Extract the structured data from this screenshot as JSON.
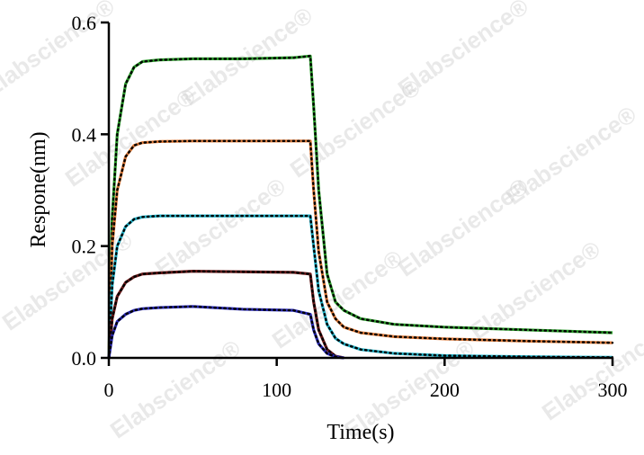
{
  "watermark": "Elabscience®",
  "chart_data": {
    "type": "line",
    "title": "",
    "xlabel": "Time(s)",
    "ylabel": "Respone(nm)",
    "xlim": [
      0,
      300
    ],
    "ylim": [
      0,
      0.6
    ],
    "x_ticks": [
      0,
      100,
      200,
      300
    ],
    "y_ticks": [
      0.0,
      0.2,
      0.4,
      0.6
    ],
    "x_tick_labels": [
      "0",
      "100",
      "200",
      "300"
    ],
    "y_tick_labels": [
      "0.0",
      "0.2",
      "0.4",
      "0.6"
    ],
    "grid": false,
    "legend": "none",
    "fit_style": "dotted black",
    "series": [
      {
        "color": "#2ca02c",
        "x": [
          0,
          2,
          5,
          10,
          15,
          20,
          30,
          50,
          80,
          110,
          120,
          122,
          125,
          130,
          135,
          140,
          150,
          170,
          200,
          250,
          300
        ],
        "values": [
          0,
          0.25,
          0.4,
          0.49,
          0.52,
          0.53,
          0.533,
          0.535,
          0.535,
          0.537,
          0.54,
          0.45,
          0.3,
          0.15,
          0.1,
          0.085,
          0.07,
          0.06,
          0.055,
          0.05,
          0.045
        ]
      },
      {
        "color": "#e07b39",
        "x": [
          0,
          2,
          5,
          10,
          15,
          20,
          30,
          50,
          80,
          110,
          120,
          122,
          125,
          130,
          135,
          140,
          150,
          170,
          200,
          250,
          300
        ],
        "values": [
          0,
          0.2,
          0.3,
          0.36,
          0.38,
          0.385,
          0.387,
          0.388,
          0.388,
          0.388,
          0.388,
          0.3,
          0.19,
          0.1,
          0.07,
          0.055,
          0.045,
          0.038,
          0.034,
          0.03,
          0.027
        ]
      },
      {
        "color": "#20b2c8",
        "x": [
          0,
          2,
          5,
          10,
          15,
          20,
          30,
          50,
          80,
          110,
          120,
          122,
          125,
          130,
          135,
          140,
          150,
          170,
          200,
          250,
          300
        ],
        "values": [
          0,
          0.13,
          0.2,
          0.235,
          0.248,
          0.252,
          0.254,
          0.254,
          0.254,
          0.254,
          0.254,
          0.2,
          0.12,
          0.06,
          0.035,
          0.025,
          0.015,
          0.008,
          0.004,
          0.002,
          0.001
        ]
      },
      {
        "color": "#6b1a1a",
        "x": [
          0,
          2,
          5,
          10,
          15,
          20,
          30,
          50,
          80,
          110,
          120,
          122,
          125,
          130,
          135,
          140
        ],
        "values": [
          0,
          0.07,
          0.11,
          0.135,
          0.145,
          0.15,
          0.152,
          0.155,
          0.154,
          0.153,
          0.15,
          0.1,
          0.05,
          0.015,
          0.003,
          0
        ]
      },
      {
        "color": "#2a2ab8",
        "x": [
          0,
          2,
          5,
          10,
          15,
          20,
          30,
          50,
          80,
          110,
          120,
          122,
          125,
          130,
          135,
          140
        ],
        "values": [
          0,
          0.04,
          0.065,
          0.078,
          0.085,
          0.088,
          0.09,
          0.092,
          0.087,
          0.085,
          0.078,
          0.05,
          0.025,
          0.008,
          0.002,
          0
        ]
      }
    ]
  }
}
